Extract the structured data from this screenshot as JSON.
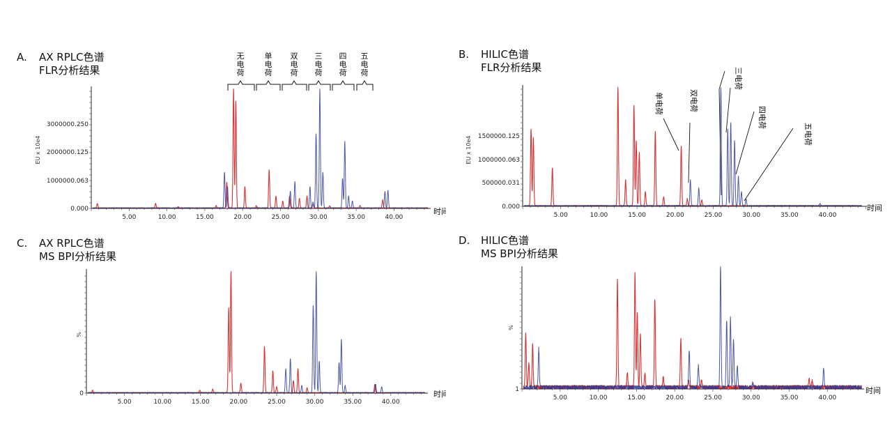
{
  "panels": [
    {
      "id": "A",
      "letter": "A.",
      "title_line1": "AX RPLC色谱",
      "title_line2": "FLR分析结果",
      "ylabel": "EU x 10e4",
      "x_unit": "时间",
      "ytick_labels": [
        "0.000",
        "1000000.063",
        "2000000.125",
        "3000000.250"
      ],
      "annotations": [
        "无电荷",
        "单电荷",
        "双电荷",
        "三电荷",
        "四电荷",
        "五电荷"
      ]
    },
    {
      "id": "B",
      "letter": "B.",
      "title_line1": "HILIC色谱",
      "title_line2": "FLR分析结果",
      "ylabel": "EU x 10e4",
      "x_unit": "时间",
      "ytick_labels": [
        "0.000",
        "500000.031",
        "1000000.063",
        "1500000.125"
      ],
      "annotations": [
        "单电荷",
        "双电荷",
        "三电荷",
        "四电荷",
        "五电荷"
      ]
    },
    {
      "id": "C",
      "letter": "C.",
      "title_line1": "AX RPLC色谱",
      "title_line2": "MS BPI分析结果",
      "ylabel": "%",
      "x_unit": "时间",
      "ytick_labels": [
        "0"
      ],
      "annotations": []
    },
    {
      "id": "D",
      "letter": "D.",
      "title_line1": "HILIC色谱",
      "title_line2": "MS BPI分析结果",
      "ylabel": "%",
      "x_unit": "时间",
      "ytick_labels": [
        "1"
      ],
      "annotations": []
    }
  ],
  "chart_data": [
    {
      "type": "line",
      "panel": "A",
      "xlim": [
        0,
        45
      ],
      "ylim": [
        0,
        1
      ],
      "xticks": [
        "5.00",
        "10.00",
        "15.00",
        "20.00",
        "25.00",
        "30.00",
        "35.00",
        "40.00"
      ],
      "colors": {
        "red": "#d62728",
        "blue": "#2b3a9a"
      },
      "series": [
        {
          "color": "#d62728",
          "peaks": [
            [
              0.8,
              0.04
            ],
            [
              8.5,
              0.04
            ],
            [
              11.5,
              0.01
            ],
            [
              16.5,
              0.02
            ],
            [
              17.9,
              0.22
            ],
            [
              18.8,
              1.0
            ],
            [
              19.1,
              0.9
            ],
            [
              20.3,
              0.18
            ],
            [
              21.8,
              0.02
            ],
            [
              23.5,
              0.32
            ],
            [
              24.4,
              0.1
            ],
            [
              25.3,
              0.06
            ],
            [
              26.2,
              0.1
            ],
            [
              27.5,
              0.08
            ],
            [
              28.5,
              0.1
            ],
            [
              29.3,
              0.03
            ],
            [
              31.5,
              0.02
            ],
            [
              35.5,
              0.02
            ],
            [
              38.5,
              0.07
            ]
          ]
        },
        {
          "color": "#2b3a9a",
          "peaks": [
            [
              17.6,
              0.3
            ],
            [
              18.0,
              0.18
            ],
            [
              26.3,
              0.14
            ],
            [
              26.9,
              0.22
            ],
            [
              28.9,
              0.18
            ],
            [
              29.3,
              0.05
            ],
            [
              29.7,
              0.62
            ],
            [
              30.2,
              1.0
            ],
            [
              30.6,
              0.3
            ],
            [
              33.2,
              0.25
            ],
            [
              33.5,
              0.56
            ],
            [
              34.0,
              0.1
            ],
            [
              34.5,
              0.06
            ],
            [
              38.8,
              0.14
            ],
            [
              39.2,
              0.15
            ]
          ]
        }
      ]
    },
    {
      "type": "line",
      "panel": "B",
      "xlim": [
        0,
        45
      ],
      "ylim": [
        0,
        1
      ],
      "xticks": [
        "5.00",
        "10.00",
        "15.00",
        "20.00",
        "25.00",
        "30.00",
        "35.00",
        "40.00"
      ],
      "colors": {
        "red": "#d62728",
        "blue": "#2b3a9a"
      },
      "series": [
        {
          "color": "#d62728",
          "peaks": [
            [
              1.1,
              0.65
            ],
            [
              1.4,
              0.58
            ],
            [
              3.9,
              0.32
            ],
            [
              12.5,
              1.0
            ],
            [
              13.5,
              0.22
            ],
            [
              14.6,
              0.85
            ],
            [
              14.9,
              0.55
            ],
            [
              15.3,
              0.45
            ],
            [
              16.1,
              0.12
            ],
            [
              17.4,
              0.63
            ],
            [
              18.5,
              0.08
            ],
            [
              20.8,
              0.5
            ],
            [
              21.6,
              0.06
            ],
            [
              23.5,
              0.05
            ]
          ]
        },
        {
          "color": "#2b3a9a",
          "peaks": [
            [
              22.0,
              0.22
            ],
            [
              23.1,
              0.15
            ],
            [
              26.0,
              1.0
            ],
            [
              26.9,
              0.65
            ],
            [
              27.3,
              0.7
            ],
            [
              27.8,
              0.55
            ],
            [
              28.3,
              0.25
            ],
            [
              28.7,
              0.12
            ],
            [
              29.3,
              0.06
            ],
            [
              39.0,
              0.02
            ]
          ]
        }
      ]
    },
    {
      "type": "line",
      "panel": "C",
      "xlim": [
        0,
        45
      ],
      "ylim": [
        0,
        1
      ],
      "xticks": [
        "5.00",
        "10.00",
        "15.00",
        "20.00",
        "25.00",
        "30.00",
        "35.00",
        "40.00"
      ],
      "colors": {
        "red": "#d62728",
        "blue": "#2b3a9a"
      },
      "series": [
        {
          "color": "#d62728",
          "peaks": [
            [
              0.8,
              0.02
            ],
            [
              14.9,
              0.02
            ],
            [
              16.6,
              0.03
            ],
            [
              18.7,
              0.7
            ],
            [
              19.0,
              1.0
            ],
            [
              20.3,
              0.08
            ],
            [
              23.4,
              0.38
            ],
            [
              24.5,
              0.18
            ],
            [
              25.0,
              0.05
            ],
            [
              27.2,
              0.1
            ],
            [
              27.8,
              0.2
            ],
            [
              29.0,
              0.04
            ],
            [
              37.9,
              0.07
            ]
          ]
        },
        {
          "color": "#2b3a9a",
          "peaks": [
            [
              26.2,
              0.2
            ],
            [
              26.8,
              0.28
            ],
            [
              28.3,
              0.06
            ],
            [
              29.8,
              0.72
            ],
            [
              30.2,
              1.0
            ],
            [
              30.6,
              0.26
            ],
            [
              33.2,
              0.25
            ],
            [
              33.5,
              0.44
            ],
            [
              34.0,
              0.06
            ],
            [
              38.0,
              0.07
            ],
            [
              38.8,
              0.05
            ]
          ]
        }
      ]
    },
    {
      "type": "line",
      "panel": "D",
      "xlim": [
        0,
        45
      ],
      "ylim": [
        0,
        1
      ],
      "xticks": [
        "5.00",
        "10.00",
        "15.00",
        "20.00",
        "25.00",
        "30.00",
        "35.00",
        "40.00"
      ],
      "colors": {
        "red": "#d62728",
        "blue": "#2b3a9a"
      },
      "series": [
        {
          "color": "#d62728",
          "peaks": [
            [
              0.5,
              0.45
            ],
            [
              0.9,
              0.2
            ],
            [
              1.4,
              0.35
            ],
            [
              12.5,
              0.9
            ],
            [
              13.8,
              0.12
            ],
            [
              14.8,
              0.95
            ],
            [
              15.1,
              0.62
            ],
            [
              15.5,
              0.45
            ],
            [
              16.1,
              0.12
            ],
            [
              17.4,
              0.74
            ],
            [
              18.5,
              0.08
            ],
            [
              20.8,
              0.4
            ],
            [
              21.8,
              0.06
            ],
            [
              23.5,
              0.06
            ],
            [
              37.6,
              0.07
            ],
            [
              38.0,
              0.05
            ]
          ]
        },
        {
          "color": "#2b3a9a",
          "peaks": [
            [
              2.2,
              0.32
            ],
            [
              21.9,
              0.3
            ],
            [
              23.1,
              0.18
            ],
            [
              26.0,
              1.0
            ],
            [
              26.8,
              0.56
            ],
            [
              27.3,
              0.58
            ],
            [
              27.7,
              0.4
            ],
            [
              28.2,
              0.18
            ],
            [
              30.2,
              0.04
            ],
            [
              39.5,
              0.15
            ]
          ]
        }
      ]
    }
  ]
}
